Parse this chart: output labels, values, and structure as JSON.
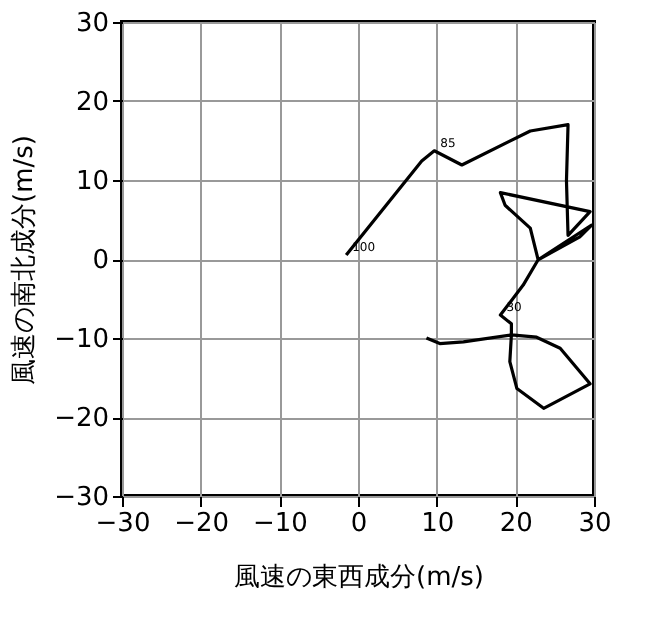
{
  "chart_data": {
    "type": "line",
    "xlabel": "風速の東西成分(m/s)",
    "ylabel": "風速の南北成分(m/s)",
    "xlim": [
      -30,
      30
    ],
    "ylim": [
      -30,
      30
    ],
    "xticks": [
      -30,
      -20,
      -10,
      0,
      10,
      20,
      30
    ],
    "yticks": [
      -30,
      -20,
      -10,
      0,
      10,
      20,
      30
    ],
    "grid": true,
    "marker": "none",
    "line_style": "solid",
    "series": [
      {
        "color": "#000000",
        "x": [
          -1.5,
          8.1,
          9.7,
          13.2,
          21.9,
          26.7,
          26.5,
          26.7,
          29.5,
          18.1,
          18.7,
          21.9,
          22.9,
          28.2,
          29.7,
          22.9,
          21.0,
          18.1,
          19.5,
          19.5,
          19.3,
          20.2,
          23.6,
          29.5,
          25.7,
          22.7,
          19.5,
          13.4,
          10.4,
          8.7
        ],
        "values": [
          0.5,
          12.4,
          13.7,
          11.9,
          16.2,
          17.0,
          9.9,
          3.0,
          6.0,
          8.4,
          6.8,
          3.9,
          -0.1,
          2.8,
          4.3,
          -0.1,
          -3.3,
          -7.1,
          -8.2,
          -9.6,
          -13.0,
          -16.4,
          -18.9,
          -15.8,
          -11.3,
          -9.9,
          -9.6,
          -10.5,
          -10.7,
          -10.0
        ]
      }
    ],
    "annotations": [
      {
        "text": "100",
        "x": -1.5,
        "y": 0.5
      },
      {
        "text": "85",
        "x": 9.7,
        "y": 13.7
      },
      {
        "text": "30",
        "x": 18.1,
        "y": -7.1
      }
    ]
  }
}
